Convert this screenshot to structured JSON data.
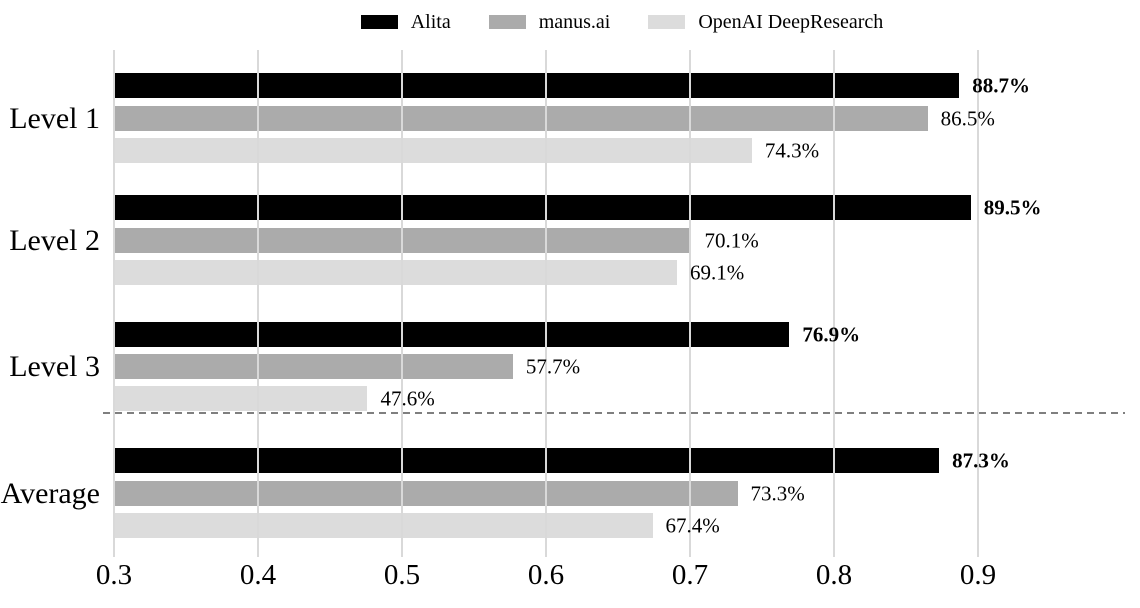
{
  "chart_data": {
    "type": "bar",
    "orientation": "horizontal",
    "title": "",
    "xlabel": "",
    "ylabel": "",
    "categories": [
      "Level 1",
      "Level 2",
      "Level 3",
      "Average"
    ],
    "series": [
      {
        "name": "Alita",
        "color": "#000000",
        "values": [
          0.887,
          0.895,
          0.769,
          0.873
        ],
        "labels": [
          "88.7%",
          "89.5%",
          "76.9%",
          "87.3%"
        ],
        "bold_labels": true
      },
      {
        "name": "manus.ai",
        "color": "#ababab",
        "values": [
          0.865,
          0.701,
          0.577,
          0.733
        ],
        "labels": [
          "86.5%",
          "70.1%",
          "57.7%",
          "73.3%"
        ],
        "bold_labels": false
      },
      {
        "name": "OpenAI DeepResearch",
        "color": "#dcdcdc",
        "values": [
          0.743,
          0.691,
          0.476,
          0.674
        ],
        "labels": [
          "74.3%",
          "69.1%",
          "47.6%",
          "67.4%"
        ],
        "bold_labels": false
      }
    ],
    "xticks": {
      "values": [
        0.3,
        0.4,
        0.5,
        0.6,
        0.7,
        0.8,
        0.9
      ],
      "labels": [
        "0.3",
        "0.4",
        "0.5",
        "0.6",
        "0.7",
        "0.8",
        "0.9"
      ]
    },
    "xlim": [
      0.3,
      1.005
    ],
    "grid": {
      "axis": "x",
      "color": "#d9d9d9",
      "on_top": true
    },
    "divider_after_category": "Level 3",
    "divider_color": "#7f7f7f",
    "legend_position": "top-center"
  }
}
